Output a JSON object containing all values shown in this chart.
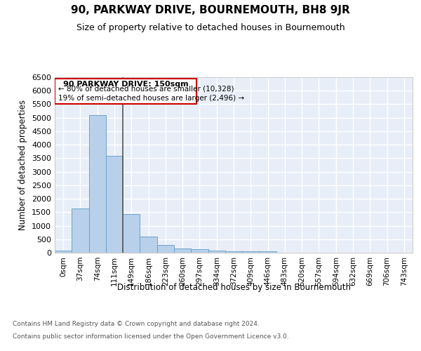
{
  "title": "90, PARKWAY DRIVE, BOURNEMOUTH, BH8 9JR",
  "subtitle": "Size of property relative to detached houses in Bournemouth",
  "xlabel": "Distribution of detached houses by size in Bournemouth",
  "ylabel": "Number of detached properties",
  "bar_color": "#b8d0ea",
  "bar_edge_color": "#6ba3cc",
  "background_color": "#e8eef8",
  "grid_color": "#ffffff",
  "categories": [
    "0sqm",
    "37sqm",
    "74sqm",
    "111sqm",
    "149sqm",
    "186sqm",
    "223sqm",
    "260sqm",
    "297sqm",
    "334sqm",
    "372sqm",
    "409sqm",
    "446sqm",
    "483sqm",
    "520sqm",
    "557sqm",
    "594sqm",
    "632sqm",
    "669sqm",
    "706sqm",
    "743sqm"
  ],
  "values": [
    80,
    1650,
    5090,
    3600,
    1420,
    590,
    295,
    150,
    120,
    75,
    50,
    40,
    50,
    0,
    0,
    0,
    0,
    0,
    0,
    0,
    0
  ],
  "ylim": [
    0,
    6500
  ],
  "yticks": [
    0,
    500,
    1000,
    1500,
    2000,
    2500,
    3000,
    3500,
    4000,
    4500,
    5000,
    5500,
    6000,
    6500
  ],
  "vline_bin_index": 4,
  "annotation_title": "90 PARKWAY DRIVE: 150sqm",
  "annotation_line1": "← 80% of detached houses are smaller (10,328)",
  "annotation_line2": "19% of semi-detached houses are larger (2,496) →",
  "annotation_color": "#cc0000",
  "vline_color": "#555555",
  "footer1": "Contains HM Land Registry data © Crown copyright and database right 2024.",
  "footer2": "Contains public sector information licensed under the Open Government Licence v3.0."
}
